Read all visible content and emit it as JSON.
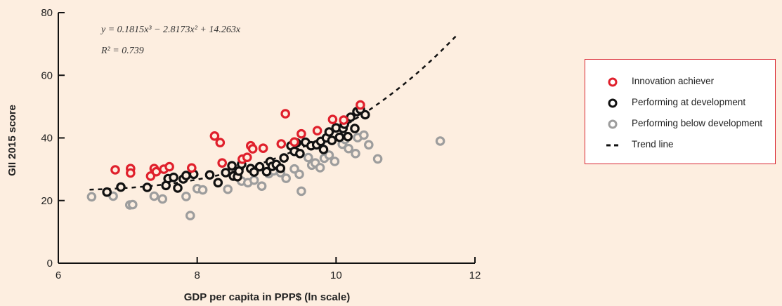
{
  "chart_data": {
    "type": "scatter",
    "title": "",
    "xlabel": "GDP per capita in PPP$ (ln scale)",
    "ylabel": "GII 2015 score",
    "xlim": [
      6,
      12
    ],
    "ylim": [
      0,
      80
    ],
    "xticks": [
      "6",
      "8",
      "10",
      "12"
    ],
    "yticks": [
      "0",
      "20",
      "40",
      "60",
      "80"
    ],
    "equation": "y = 0.1815x³ − 2.8173x² + 14.263x",
    "r_squared": "R² = 0.739",
    "grid": false,
    "legend_position": "right",
    "series": [
      {
        "name": "Innovation achiever",
        "color": "#e0202c",
        "points": [
          [
            6.82,
            29.8
          ],
          [
            7.04,
            30.2
          ],
          [
            7.04,
            28.8
          ],
          [
            7.33,
            27.8
          ],
          [
            7.38,
            30.2
          ],
          [
            7.41,
            29.2
          ],
          [
            7.52,
            30.0
          ],
          [
            7.6,
            30.8
          ],
          [
            7.92,
            30.4
          ],
          [
            8.25,
            40.6
          ],
          [
            8.33,
            38.5
          ],
          [
            8.36,
            32.0
          ],
          [
            8.65,
            33.2
          ],
          [
            8.72,
            33.8
          ],
          [
            8.77,
            37.5
          ],
          [
            8.8,
            36.5
          ],
          [
            8.95,
            36.7
          ],
          [
            9.21,
            38.1
          ],
          [
            9.27,
            47.7
          ],
          [
            9.4,
            38.7
          ],
          [
            9.5,
            41.3
          ],
          [
            9.73,
            42.3
          ],
          [
            9.95,
            45.9
          ],
          [
            10.11,
            45.7
          ],
          [
            10.35,
            50.5
          ]
        ]
      },
      {
        "name": "Performing at development",
        "color": "#111111",
        "points": [
          [
            6.7,
            22.7
          ],
          [
            6.9,
            24.3
          ],
          [
            7.28,
            24.2
          ],
          [
            7.55,
            24.8
          ],
          [
            7.58,
            27.0
          ],
          [
            7.66,
            27.4
          ],
          [
            7.72,
            24.0
          ],
          [
            7.8,
            26.9
          ],
          [
            7.84,
            28.0
          ],
          [
            7.95,
            28.4
          ],
          [
            8.18,
            28.2
          ],
          [
            8.3,
            25.7
          ],
          [
            8.41,
            28.9
          ],
          [
            8.5,
            31.1
          ],
          [
            8.52,
            27.8
          ],
          [
            8.58,
            27.6
          ],
          [
            8.6,
            29.4
          ],
          [
            8.64,
            31.6
          ],
          [
            8.77,
            30.2
          ],
          [
            8.82,
            29.1
          ],
          [
            8.9,
            30.8
          ],
          [
            9.0,
            29.2
          ],
          [
            9.05,
            32.4
          ],
          [
            9.08,
            30.9
          ],
          [
            9.14,
            31.5
          ],
          [
            9.2,
            30.3
          ],
          [
            9.25,
            33.6
          ],
          [
            9.35,
            37.5
          ],
          [
            9.4,
            35.7
          ],
          [
            9.43,
            38.4
          ],
          [
            9.48,
            35.0
          ],
          [
            9.56,
            38.6
          ],
          [
            9.64,
            37.5
          ],
          [
            9.72,
            37.8
          ],
          [
            9.78,
            38.9
          ],
          [
            9.82,
            36.3
          ],
          [
            9.86,
            40.0
          ],
          [
            9.9,
            41.9
          ],
          [
            9.94,
            39.2
          ],
          [
            10.0,
            43.2
          ],
          [
            10.05,
            40.2
          ],
          [
            10.1,
            43.0
          ],
          [
            10.12,
            44.4
          ],
          [
            10.17,
            40.4
          ],
          [
            10.21,
            46.6
          ],
          [
            10.27,
            43.0
          ],
          [
            10.3,
            48.4
          ],
          [
            10.35,
            49.1
          ],
          [
            10.42,
            47.4
          ]
        ]
      },
      {
        "name": "Performing below development",
        "color": "#9d9d9d",
        "points": [
          [
            6.48,
            21.2
          ],
          [
            6.79,
            21.4
          ],
          [
            7.03,
            18.6
          ],
          [
            7.07,
            18.7
          ],
          [
            7.38,
            21.4
          ],
          [
            7.5,
            20.5
          ],
          [
            7.84,
            21.3
          ],
          [
            7.9,
            15.2
          ],
          [
            8.0,
            23.8
          ],
          [
            8.08,
            23.4
          ],
          [
            8.44,
            23.6
          ],
          [
            8.64,
            26.2
          ],
          [
            8.73,
            25.7
          ],
          [
            8.82,
            26.5
          ],
          [
            8.93,
            24.6
          ],
          [
            9.03,
            28.6
          ],
          [
            9.1,
            29.5
          ],
          [
            9.2,
            28.9
          ],
          [
            9.28,
            27.1
          ],
          [
            9.4,
            30.1
          ],
          [
            9.47,
            28.4
          ],
          [
            9.5,
            23.0
          ],
          [
            9.6,
            33.7
          ],
          [
            9.65,
            31.3
          ],
          [
            9.7,
            32.0
          ],
          [
            9.77,
            30.5
          ],
          [
            9.83,
            33.5
          ],
          [
            9.9,
            34.5
          ],
          [
            9.98,
            32.5
          ],
          [
            10.09,
            38.0
          ],
          [
            10.13,
            39.5
          ],
          [
            10.18,
            36.6
          ],
          [
            10.28,
            35.0
          ],
          [
            10.31,
            40.1
          ],
          [
            10.4,
            40.9
          ],
          [
            10.47,
            37.8
          ],
          [
            10.6,
            33.3
          ],
          [
            11.5,
            39.0
          ]
        ]
      }
    ],
    "trend_line": {
      "name": "Trend line",
      "coefficients": [
        0.1815,
        -2.8173,
        14.263
      ],
      "x_range": [
        6.45,
        11.75
      ],
      "color": "#111111"
    }
  },
  "legend": {
    "items": [
      {
        "label": "Innovation achiever",
        "color": "#e0202c",
        "marker": "circle"
      },
      {
        "label": "Performing at development",
        "color": "#111111",
        "marker": "circle"
      },
      {
        "label": "Performing below development",
        "color": "#9d9d9d",
        "marker": "circle"
      },
      {
        "label": "Trend line",
        "color": "#111111",
        "marker": "dashed-line"
      }
    ]
  }
}
